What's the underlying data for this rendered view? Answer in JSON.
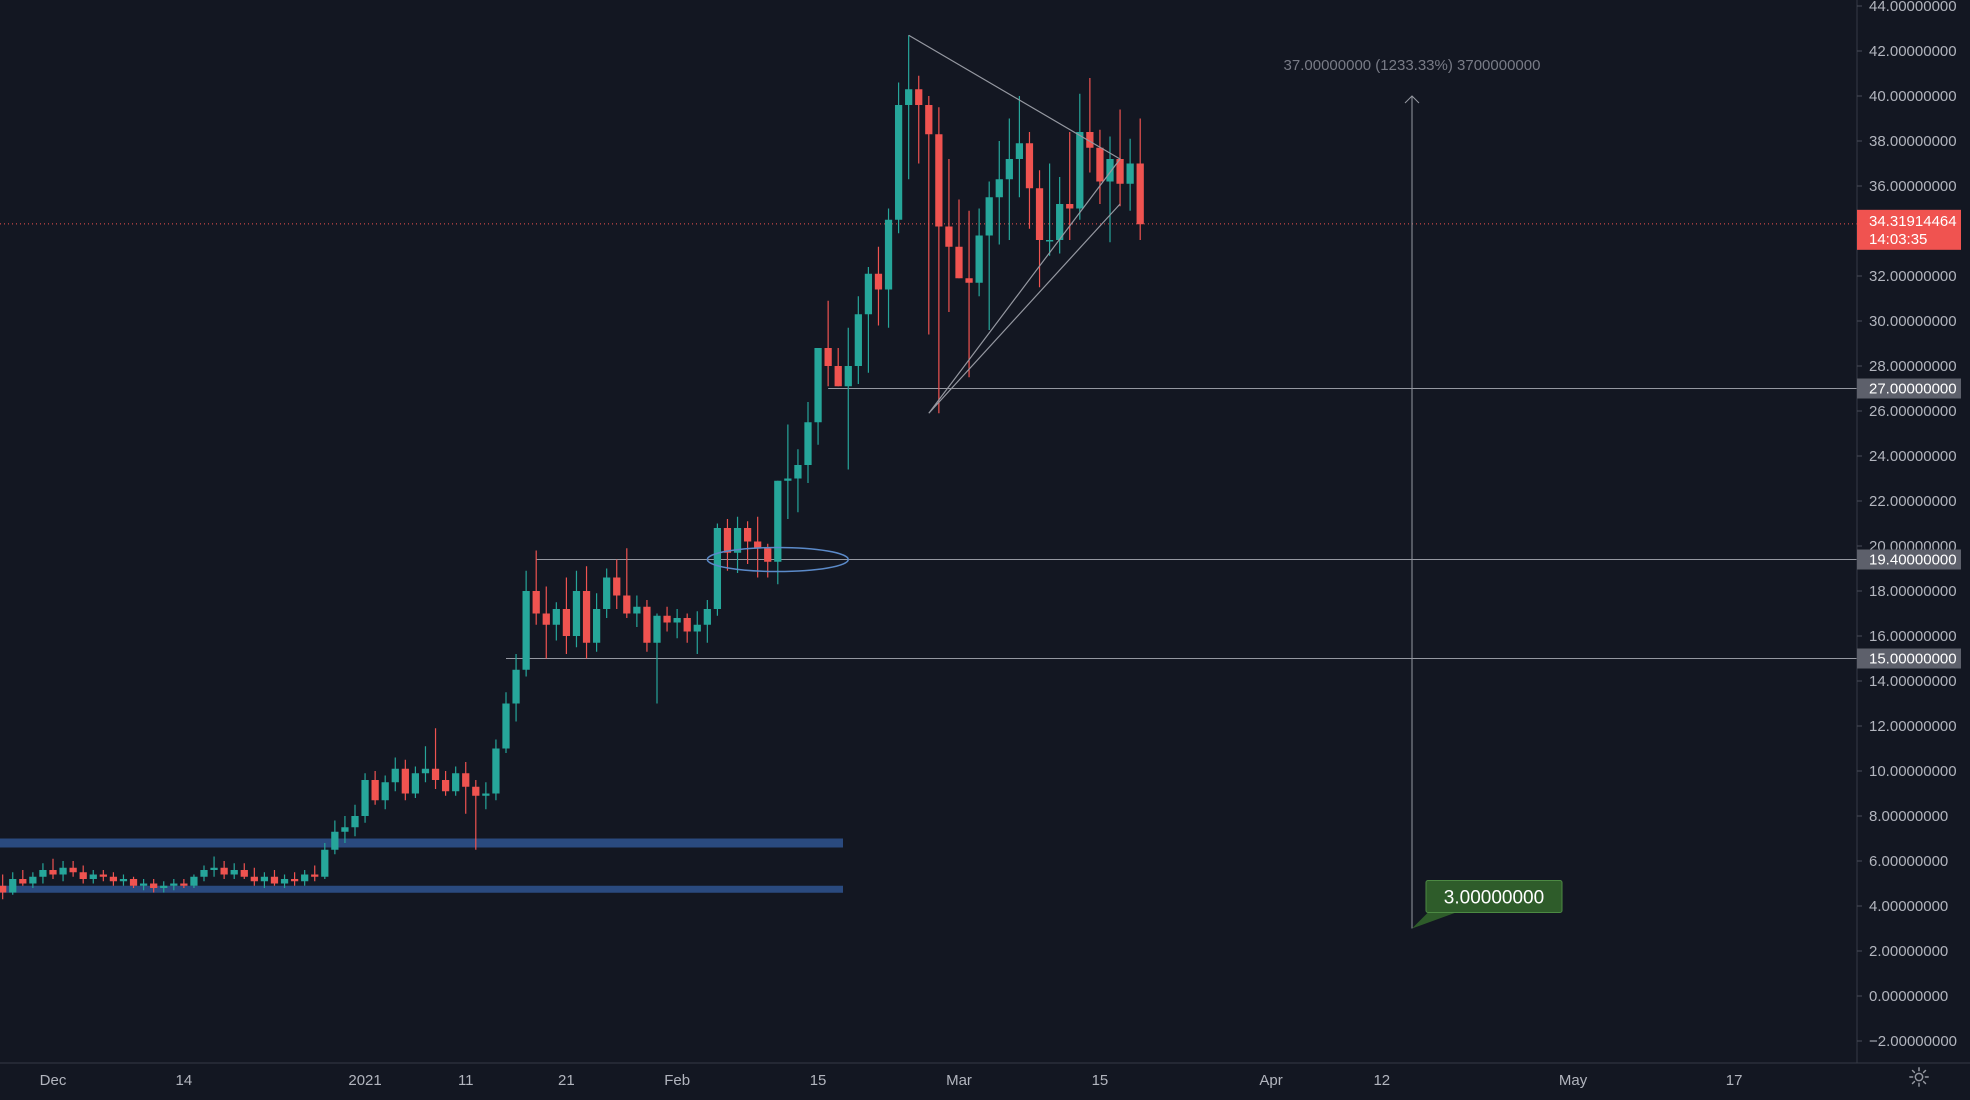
{
  "chart_data": {
    "type": "candlestick",
    "ylim": [
      -3,
      44
    ],
    "y_ticks": [
      {
        "value": 44,
        "label": "44.00000000"
      },
      {
        "value": 42,
        "label": "42.00000000"
      },
      {
        "value": 40,
        "label": "40.00000000"
      },
      {
        "value": 38,
        "label": "38.00000000"
      },
      {
        "value": 36,
        "label": "36.00000000"
      },
      {
        "value": 32,
        "label": "32.00000000"
      },
      {
        "value": 30,
        "label": "30.00000000"
      },
      {
        "value": 28,
        "label": "28.00000000"
      },
      {
        "value": 26,
        "label": "26.00000000"
      },
      {
        "value": 24,
        "label": "24.00000000"
      },
      {
        "value": 22,
        "label": "22.00000000"
      },
      {
        "value": 20,
        "label": "20.00000000"
      },
      {
        "value": 18,
        "label": "18.00000000"
      },
      {
        "value": 16,
        "label": "16.00000000"
      },
      {
        "value": 14,
        "label": "14.00000000"
      },
      {
        "value": 12,
        "label": "12.00000000"
      },
      {
        "value": 10,
        "label": "10.00000000"
      },
      {
        "value": 8,
        "label": "8.00000000"
      },
      {
        "value": 6,
        "label": "6.00000000"
      },
      {
        "value": 4,
        "label": "4.00000000"
      },
      {
        "value": 2,
        "label": "2.00000000"
      },
      {
        "value": 0,
        "label": "0.00000000"
      },
      {
        "value": -2,
        "label": "−2.00000000"
      }
    ],
    "x_ticks": [
      {
        "date": "2020-12-01",
        "label": "Dec"
      },
      {
        "date": "2020-12-14",
        "label": "14"
      },
      {
        "date": "2021-01-01",
        "label": "2021"
      },
      {
        "date": "2021-01-11",
        "label": "11"
      },
      {
        "date": "2021-01-21",
        "label": "21"
      },
      {
        "date": "2021-02-01",
        "label": "Feb"
      },
      {
        "date": "2021-02-15",
        "label": "15"
      },
      {
        "date": "2021-03-01",
        "label": "Mar"
      },
      {
        "date": "2021-03-15",
        "label": "15"
      },
      {
        "date": "2021-04-01",
        "label": "Apr"
      },
      {
        "date": "2021-04-12",
        "label": "12"
      },
      {
        "date": "2021-05-01",
        "label": "May"
      },
      {
        "date": "2021-05-17",
        "label": "17"
      }
    ],
    "xlim": [
      "2020-11-25",
      "2021-05-24"
    ],
    "candles": [
      {
        "date": "2020-11-26",
        "o": 4.9,
        "h": 5.4,
        "l": 4.3,
        "c": 4.6
      },
      {
        "date": "2020-11-27",
        "o": 4.6,
        "h": 5.5,
        "l": 4.5,
        "c": 5.2
      },
      {
        "date": "2020-11-28",
        "o": 5.2,
        "h": 5.6,
        "l": 4.9,
        "c": 5.0
      },
      {
        "date": "2020-11-29",
        "o": 5.0,
        "h": 5.5,
        "l": 4.8,
        "c": 5.3
      },
      {
        "date": "2020-11-30",
        "o": 5.3,
        "h": 5.9,
        "l": 5.0,
        "c": 5.6
      },
      {
        "date": "2020-12-01",
        "o": 5.6,
        "h": 6.1,
        "l": 5.2,
        "c": 5.4
      },
      {
        "date": "2020-12-02",
        "o": 5.4,
        "h": 6.0,
        "l": 5.1,
        "c": 5.7
      },
      {
        "date": "2020-12-03",
        "o": 5.7,
        "h": 6.0,
        "l": 5.3,
        "c": 5.5
      },
      {
        "date": "2020-12-04",
        "o": 5.5,
        "h": 5.8,
        "l": 5.0,
        "c": 5.2
      },
      {
        "date": "2020-12-05",
        "o": 5.2,
        "h": 5.6,
        "l": 5.0,
        "c": 5.4
      },
      {
        "date": "2020-12-06",
        "o": 5.4,
        "h": 5.6,
        "l": 5.1,
        "c": 5.3
      },
      {
        "date": "2020-12-07",
        "o": 5.3,
        "h": 5.5,
        "l": 4.9,
        "c": 5.1
      },
      {
        "date": "2020-12-08",
        "o": 5.1,
        "h": 5.4,
        "l": 4.9,
        "c": 5.2
      },
      {
        "date": "2020-12-09",
        "o": 5.2,
        "h": 5.3,
        "l": 4.8,
        "c": 4.9
      },
      {
        "date": "2020-12-10",
        "o": 4.9,
        "h": 5.2,
        "l": 4.7,
        "c": 5.0
      },
      {
        "date": "2020-12-11",
        "o": 5.0,
        "h": 5.2,
        "l": 4.6,
        "c": 4.8
      },
      {
        "date": "2020-12-12",
        "o": 4.8,
        "h": 5.1,
        "l": 4.6,
        "c": 4.9
      },
      {
        "date": "2020-12-13",
        "o": 4.9,
        "h": 5.2,
        "l": 4.7,
        "c": 5.0
      },
      {
        "date": "2020-12-14",
        "o": 5.0,
        "h": 5.2,
        "l": 4.8,
        "c": 4.9
      },
      {
        "date": "2020-12-15",
        "o": 4.9,
        "h": 5.4,
        "l": 4.8,
        "c": 5.3
      },
      {
        "date": "2020-12-16",
        "o": 5.3,
        "h": 5.8,
        "l": 5.1,
        "c": 5.6
      },
      {
        "date": "2020-12-17",
        "o": 5.6,
        "h": 6.2,
        "l": 5.3,
        "c": 5.7
      },
      {
        "date": "2020-12-18",
        "o": 5.7,
        "h": 6.0,
        "l": 5.2,
        "c": 5.4
      },
      {
        "date": "2020-12-19",
        "o": 5.4,
        "h": 5.9,
        "l": 5.2,
        "c": 5.6
      },
      {
        "date": "2020-12-20",
        "o": 5.6,
        "h": 5.9,
        "l": 5.2,
        "c": 5.3
      },
      {
        "date": "2020-12-21",
        "o": 5.3,
        "h": 5.7,
        "l": 4.9,
        "c": 5.1
      },
      {
        "date": "2020-12-22",
        "o": 5.1,
        "h": 5.5,
        "l": 4.8,
        "c": 5.3
      },
      {
        "date": "2020-12-23",
        "o": 5.3,
        "h": 5.6,
        "l": 4.9,
        "c": 5.0
      },
      {
        "date": "2020-12-24",
        "o": 5.0,
        "h": 5.4,
        "l": 4.8,
        "c": 5.2
      },
      {
        "date": "2020-12-25",
        "o": 5.2,
        "h": 5.5,
        "l": 4.9,
        "c": 5.1
      },
      {
        "date": "2020-12-26",
        "o": 5.1,
        "h": 5.6,
        "l": 4.9,
        "c": 5.4
      },
      {
        "date": "2020-12-27",
        "o": 5.4,
        "h": 5.8,
        "l": 5.1,
        "c": 5.3
      },
      {
        "date": "2020-12-28",
        "o": 5.3,
        "h": 6.8,
        "l": 5.2,
        "c": 6.5
      },
      {
        "date": "2020-12-29",
        "o": 6.5,
        "h": 7.8,
        "l": 6.3,
        "c": 7.3
      },
      {
        "date": "2020-12-30",
        "o": 7.3,
        "h": 8.0,
        "l": 6.8,
        "c": 7.5
      },
      {
        "date": "2020-12-31",
        "o": 7.5,
        "h": 8.5,
        "l": 7.1,
        "c": 8.0
      },
      {
        "date": "2021-01-01",
        "o": 8.0,
        "h": 9.9,
        "l": 7.7,
        "c": 9.6
      },
      {
        "date": "2021-01-02",
        "o": 9.6,
        "h": 10.0,
        "l": 8.5,
        "c": 8.7
      },
      {
        "date": "2021-01-03",
        "o": 8.7,
        "h": 9.8,
        "l": 8.3,
        "c": 9.5
      },
      {
        "date": "2021-01-04",
        "o": 9.5,
        "h": 10.6,
        "l": 9.1,
        "c": 10.1
      },
      {
        "date": "2021-01-05",
        "o": 10.1,
        "h": 10.5,
        "l": 8.7,
        "c": 9.0
      },
      {
        "date": "2021-01-06",
        "o": 9.0,
        "h": 10.2,
        "l": 8.8,
        "c": 9.9
      },
      {
        "date": "2021-01-07",
        "o": 9.9,
        "h": 11.1,
        "l": 9.5,
        "c": 10.1
      },
      {
        "date": "2021-01-08",
        "o": 10.1,
        "h": 11.9,
        "l": 9.2,
        "c": 9.6
      },
      {
        "date": "2021-01-09",
        "o": 9.6,
        "h": 10.0,
        "l": 8.9,
        "c": 9.1
      },
      {
        "date": "2021-01-10",
        "o": 9.1,
        "h": 10.2,
        "l": 8.9,
        "c": 9.9
      },
      {
        "date": "2021-01-11",
        "o": 9.9,
        "h": 10.4,
        "l": 8.1,
        "c": 9.3
      },
      {
        "date": "2021-01-12",
        "o": 9.3,
        "h": 9.6,
        "l": 6.5,
        "c": 8.9
      },
      {
        "date": "2021-01-13",
        "o": 8.9,
        "h": 9.5,
        "l": 8.3,
        "c": 9.0
      },
      {
        "date": "2021-01-14",
        "o": 9.0,
        "h": 11.4,
        "l": 8.7,
        "c": 11.0
      },
      {
        "date": "2021-01-15",
        "o": 11.0,
        "h": 13.5,
        "l": 10.8,
        "c": 13.0
      },
      {
        "date": "2021-01-16",
        "o": 13.0,
        "h": 15.2,
        "l": 12.2,
        "c": 14.5
      },
      {
        "date": "2021-01-17",
        "o": 14.5,
        "h": 18.9,
        "l": 14.2,
        "c": 18.0
      },
      {
        "date": "2021-01-18",
        "o": 18.0,
        "h": 19.8,
        "l": 16.5,
        "c": 17.0
      },
      {
        "date": "2021-01-19",
        "o": 17.0,
        "h": 18.2,
        "l": 15.0,
        "c": 16.5
      },
      {
        "date": "2021-01-20",
        "o": 16.5,
        "h": 17.5,
        "l": 15.8,
        "c": 17.2
      },
      {
        "date": "2021-01-21",
        "o": 17.2,
        "h": 18.6,
        "l": 15.2,
        "c": 16.0
      },
      {
        "date": "2021-01-22",
        "o": 16.0,
        "h": 18.9,
        "l": 15.5,
        "c": 18.0
      },
      {
        "date": "2021-01-23",
        "o": 18.0,
        "h": 19.1,
        "l": 15.0,
        "c": 15.7
      },
      {
        "date": "2021-01-24",
        "o": 15.7,
        "h": 17.9,
        "l": 15.3,
        "c": 17.2
      },
      {
        "date": "2021-01-25",
        "o": 17.2,
        "h": 19.0,
        "l": 16.8,
        "c": 18.6
      },
      {
        "date": "2021-01-26",
        "o": 18.6,
        "h": 19.4,
        "l": 17.2,
        "c": 17.8
      },
      {
        "date": "2021-01-27",
        "o": 17.8,
        "h": 19.9,
        "l": 16.8,
        "c": 17.0
      },
      {
        "date": "2021-01-28",
        "o": 17.0,
        "h": 17.8,
        "l": 16.4,
        "c": 17.3
      },
      {
        "date": "2021-01-29",
        "o": 17.3,
        "h": 17.6,
        "l": 15.3,
        "c": 15.7
      },
      {
        "date": "2021-01-30",
        "o": 15.7,
        "h": 17.0,
        "l": 13.0,
        "c": 16.9
      },
      {
        "date": "2021-01-31",
        "o": 16.9,
        "h": 17.3,
        "l": 16.2,
        "c": 16.6
      },
      {
        "date": "2021-02-01",
        "o": 16.6,
        "h": 17.2,
        "l": 15.9,
        "c": 16.8
      },
      {
        "date": "2021-02-02",
        "o": 16.8,
        "h": 17.0,
        "l": 15.7,
        "c": 16.2
      },
      {
        "date": "2021-02-03",
        "o": 16.2,
        "h": 17.1,
        "l": 15.2,
        "c": 16.5
      },
      {
        "date": "2021-02-04",
        "o": 16.5,
        "h": 17.6,
        "l": 15.7,
        "c": 17.2
      },
      {
        "date": "2021-02-05",
        "o": 17.2,
        "h": 21.0,
        "l": 16.9,
        "c": 20.8
      },
      {
        "date": "2021-02-06",
        "o": 20.8,
        "h": 21.2,
        "l": 18.9,
        "c": 19.7
      },
      {
        "date": "2021-02-07",
        "o": 19.7,
        "h": 21.3,
        "l": 18.8,
        "c": 20.8
      },
      {
        "date": "2021-02-08",
        "o": 20.8,
        "h": 21.1,
        "l": 19.2,
        "c": 20.2
      },
      {
        "date": "2021-02-09",
        "o": 20.2,
        "h": 21.3,
        "l": 18.6,
        "c": 19.9
      },
      {
        "date": "2021-02-10",
        "o": 19.9,
        "h": 20.1,
        "l": 18.6,
        "c": 19.3
      },
      {
        "date": "2021-02-11",
        "o": 19.3,
        "h": 22.9,
        "l": 18.3,
        "c": 22.9
      },
      {
        "date": "2021-02-12",
        "o": 22.9,
        "h": 25.4,
        "l": 21.2,
        "c": 23.0
      },
      {
        "date": "2021-02-13",
        "o": 23.0,
        "h": 24.3,
        "l": 21.5,
        "c": 23.6
      },
      {
        "date": "2021-02-14",
        "o": 23.6,
        "h": 26.4,
        "l": 22.8,
        "c": 25.5
      },
      {
        "date": "2021-02-15",
        "o": 25.5,
        "h": 28.7,
        "l": 24.5,
        "c": 28.8
      },
      {
        "date": "2021-02-16",
        "o": 28.8,
        "h": 30.9,
        "l": 27.1,
        "c": 28.0
      },
      {
        "date": "2021-02-17",
        "o": 28.0,
        "h": 28.8,
        "l": 27.1,
        "c": 27.1
      },
      {
        "date": "2021-02-18",
        "o": 27.1,
        "h": 29.7,
        "l": 23.4,
        "c": 28.0
      },
      {
        "date": "2021-02-19",
        "o": 28.0,
        "h": 31.1,
        "l": 27.2,
        "c": 30.3
      },
      {
        "date": "2021-02-20",
        "o": 30.3,
        "h": 32.4,
        "l": 27.7,
        "c": 32.1
      },
      {
        "date": "2021-02-21",
        "o": 32.1,
        "h": 33.3,
        "l": 29.8,
        "c": 31.4
      },
      {
        "date": "2021-02-22",
        "o": 31.4,
        "h": 35.0,
        "l": 29.7,
        "c": 34.5
      },
      {
        "date": "2021-02-23",
        "o": 34.5,
        "h": 40.6,
        "l": 33.9,
        "c": 39.6
      },
      {
        "date": "2021-02-24",
        "o": 39.6,
        "h": 42.7,
        "l": 36.3,
        "c": 40.3
      },
      {
        "date": "2021-02-25",
        "o": 40.3,
        "h": 40.9,
        "l": 37.0,
        "c": 39.6
      },
      {
        "date": "2021-02-26",
        "o": 39.6,
        "h": 40.0,
        "l": 29.4,
        "c": 38.3
      },
      {
        "date": "2021-02-27",
        "o": 38.3,
        "h": 39.5,
        "l": 25.9,
        "c": 34.2
      },
      {
        "date": "2021-02-28",
        "o": 34.2,
        "h": 37.2,
        "l": 30.4,
        "c": 33.3
      },
      {
        "date": "2021-03-01",
        "o": 33.3,
        "h": 35.4,
        "l": 31.9,
        "c": 31.9
      },
      {
        "date": "2021-03-02",
        "o": 31.9,
        "h": 34.9,
        "l": 27.5,
        "c": 31.7
      },
      {
        "date": "2021-03-03",
        "o": 31.7,
        "h": 35.0,
        "l": 31.1,
        "c": 33.8
      },
      {
        "date": "2021-03-04",
        "o": 33.8,
        "h": 36.2,
        "l": 29.6,
        "c": 35.5
      },
      {
        "date": "2021-03-05",
        "o": 35.5,
        "h": 38.0,
        "l": 33.4,
        "c": 36.3
      },
      {
        "date": "2021-03-06",
        "o": 36.3,
        "h": 39.0,
        "l": 33.6,
        "c": 37.2
      },
      {
        "date": "2021-03-07",
        "o": 37.2,
        "h": 40.0,
        "l": 35.5,
        "c": 37.9
      },
      {
        "date": "2021-03-08",
        "o": 37.9,
        "h": 38.4,
        "l": 34.1,
        "c": 35.9
      },
      {
        "date": "2021-03-09",
        "o": 35.9,
        "h": 36.7,
        "l": 31.5,
        "c": 33.6
      },
      {
        "date": "2021-03-10",
        "o": 33.6,
        "h": 37.0,
        "l": 32.9,
        "c": 33.6
      },
      {
        "date": "2021-03-11",
        "o": 33.6,
        "h": 36.4,
        "l": 33.0,
        "c": 35.2
      },
      {
        "date": "2021-03-12",
        "o": 35.2,
        "h": 38.4,
        "l": 33.6,
        "c": 35.0
      },
      {
        "date": "2021-03-13",
        "o": 35.0,
        "h": 40.1,
        "l": 34.5,
        "c": 38.4
      },
      {
        "date": "2021-03-14",
        "o": 38.4,
        "h": 40.8,
        "l": 36.6,
        "c": 37.7
      },
      {
        "date": "2021-03-15",
        "o": 37.7,
        "h": 38.5,
        "l": 35.2,
        "c": 36.2
      },
      {
        "date": "2021-03-16",
        "o": 36.2,
        "h": 38.2,
        "l": 33.5,
        "c": 37.2
      },
      {
        "date": "2021-03-17",
        "o": 37.2,
        "h": 39.4,
        "l": 35.1,
        "c": 36.1
      },
      {
        "date": "2021-03-18",
        "o": 36.1,
        "h": 38.1,
        "l": 34.9,
        "c": 37.0
      },
      {
        "date": "2021-03-19",
        "o": 37.0,
        "h": 39.0,
        "l": 33.6,
        "c": 34.3
      }
    ],
    "horizontal_levels": [
      {
        "value": 27.0,
        "label": "27.00000000"
      },
      {
        "value": 19.4,
        "label": "19.40000000"
      },
      {
        "value": 15.0,
        "label": "15.00000000"
      }
    ],
    "support_zones": [
      {
        "from": 6.6,
        "to": 7.0
      },
      {
        "from": 4.6,
        "to": 4.9
      }
    ],
    "current_price": {
      "value": 34.31914464,
      "label": "34.31914464",
      "countdown": "14:03:35"
    },
    "triangle": [
      {
        "date": "2021-02-24",
        "y": 42.7
      },
      {
        "date": "2021-03-17",
        "y": 37.2
      },
      {
        "date": "2021-02-26",
        "y": 25.9
      },
      {
        "date": "2021-03-17",
        "y": 35.2
      }
    ],
    "measure": {
      "from": 3.0,
      "to": 40.0,
      "date": "2021-04-15",
      "label": "37.00000000 (1233.33%) 3700000000"
    },
    "target_callout": {
      "label": "3.00000000",
      "value": 3.0
    },
    "highlight_ellipse": {
      "date_from": "2021-02-04",
      "date_to": "2021-02-18",
      "y": 19.4
    }
  },
  "colors": {
    "background": "#131722",
    "up": "#26a69a",
    "down": "#ef5350",
    "level_line": "#9598a1",
    "zone": "#2a4a7f",
    "current_price": "#f05350",
    "target": "#2e5c2a",
    "ellipse": "#5b8ac9"
  },
  "icons": {
    "settings": "gear-icon"
  }
}
